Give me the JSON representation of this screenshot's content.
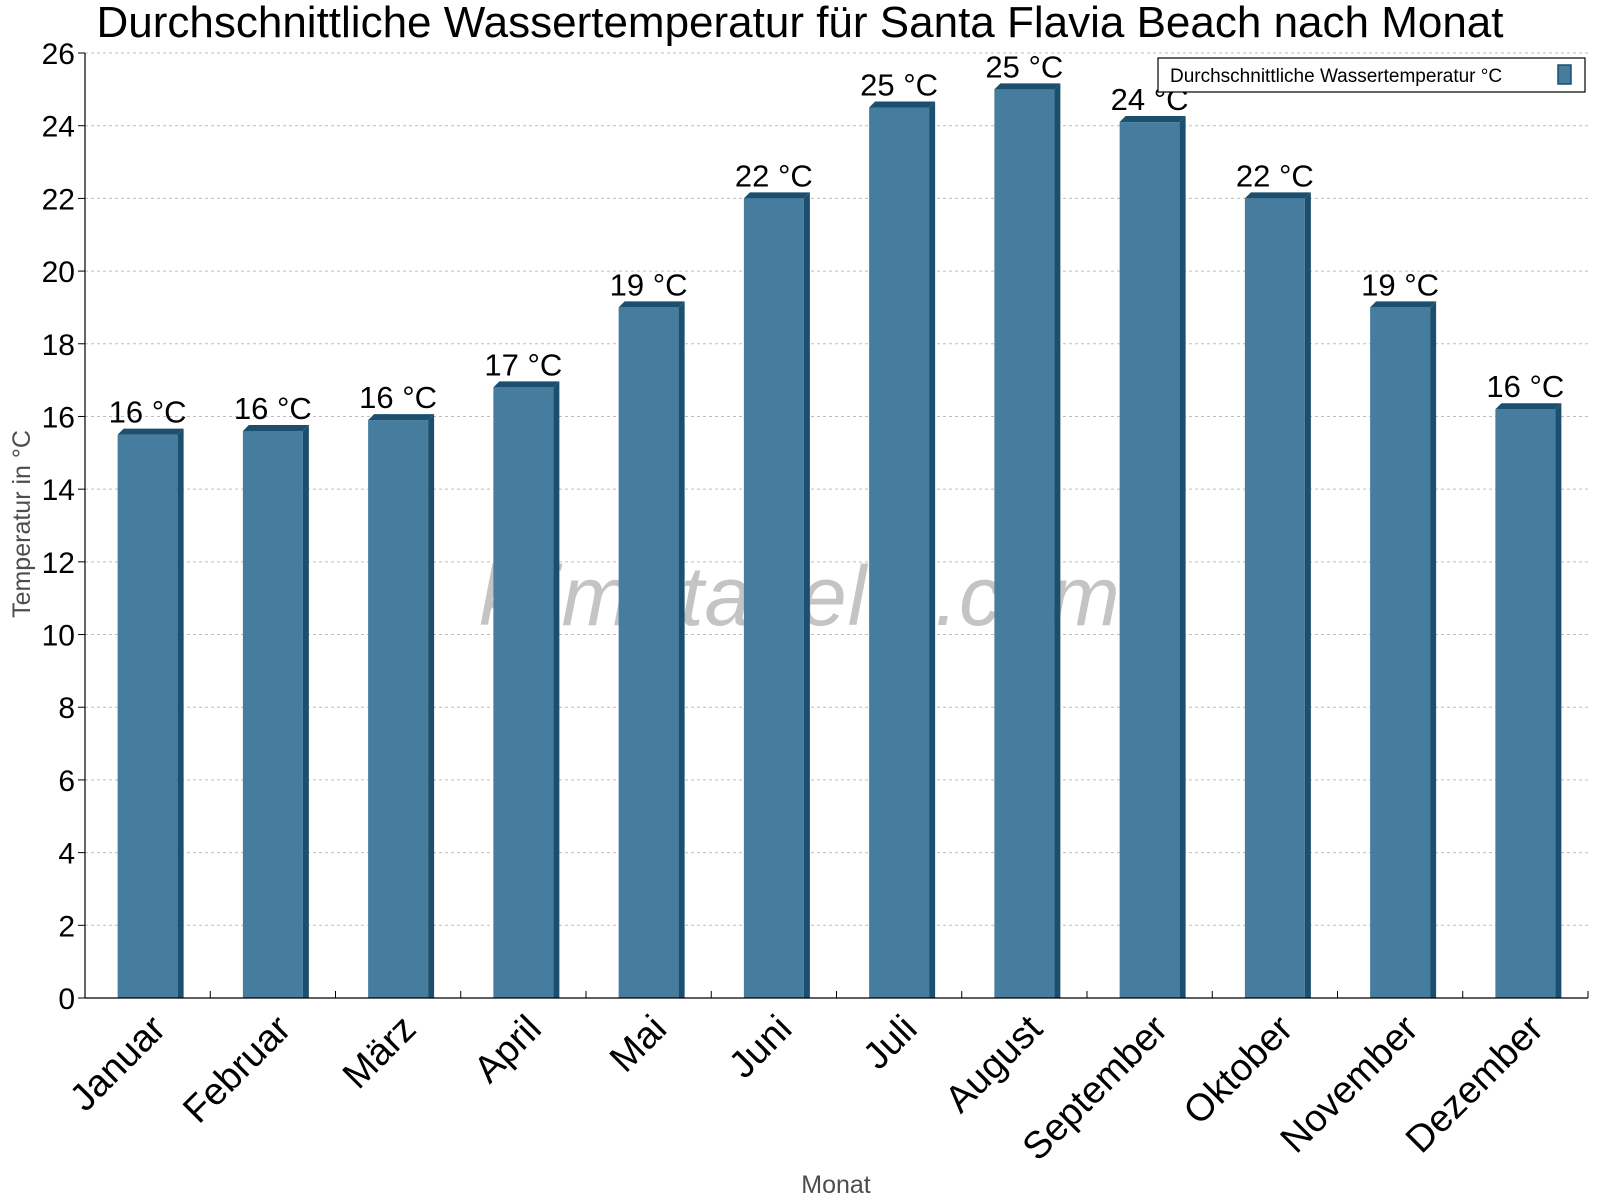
{
  "chart_data": {
    "type": "bar",
    "title": "Durchschnittliche Wassertemperatur für Santa Flavia Beach nach Monat",
    "xlabel": "Monat",
    "ylabel": "Temperatur in °C",
    "categories": [
      "Januar",
      "Februar",
      "März",
      "April",
      "Mai",
      "Juni",
      "Juli",
      "August",
      "September",
      "Oktober",
      "November",
      "Dezember"
    ],
    "series": [
      {
        "name": "Durchschnittliche Wassertemperatur °C",
        "values": [
          15.5,
          15.6,
          15.9,
          16.8,
          19.0,
          22.0,
          24.5,
          25.0,
          24.1,
          22.0,
          19.0,
          16.2
        ],
        "labels": [
          "16 °C",
          "16 °C",
          "16 °C",
          "17 °C",
          "19 °C",
          "22 °C",
          "25 °C",
          "25 °C",
          "24 °C",
          "22 °C",
          "19 °C",
          "16 °C"
        ],
        "color": "#467c9e",
        "edge_color": "#1c4f6d"
      }
    ],
    "ylim": [
      0,
      26
    ],
    "yticks": [
      "0",
      "2",
      "4",
      "6",
      "8",
      "10",
      "12",
      "14",
      "16",
      "18",
      "20",
      "22",
      "24",
      "26"
    ],
    "grid": true,
    "legend": "top-right",
    "watermark": "klimatabelle.com"
  }
}
